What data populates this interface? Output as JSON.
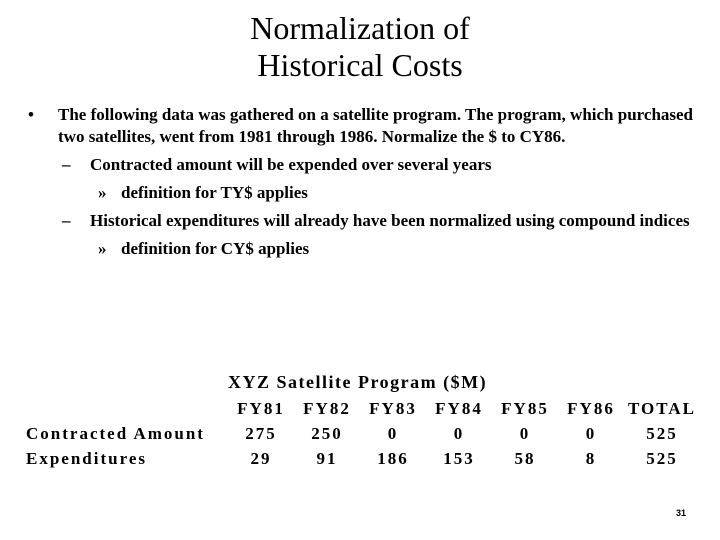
{
  "slide": {
    "title_lines": [
      "Normalization of",
      "Historical Costs"
    ],
    "bullet_main": "The following data was gathered on a satellite program.  The program, which purchased two satellites, went from 1981 through 1986.  Normalize the $ to CY86.",
    "sub1": "Contracted amount will be expended over several years",
    "sub1_detail": "definition for TY$ applies",
    "sub2": "Historical expenditures will already have been normalized using compound indices",
    "sub2_detail": "definition for CY$ applies",
    "bullet_symbol": "•",
    "dash_symbol": "–",
    "chevron_symbol": "»",
    "page_number": "31"
  },
  "table": {
    "title": "XYZ Satellite Program ($M)",
    "headers": [
      "FY81",
      "FY82",
      "FY83",
      "FY84",
      "FY85",
      "FY86",
      "TOTAL"
    ],
    "rows": [
      {
        "label": "Contracted Amount",
        "values": [
          "275",
          "250",
          "0",
          "0",
          "0",
          "0",
          "525"
        ]
      },
      {
        "label": "Expenditures",
        "values": [
          "29",
          "91",
          "186",
          "153",
          "58",
          "8",
          "525"
        ]
      }
    ]
  }
}
